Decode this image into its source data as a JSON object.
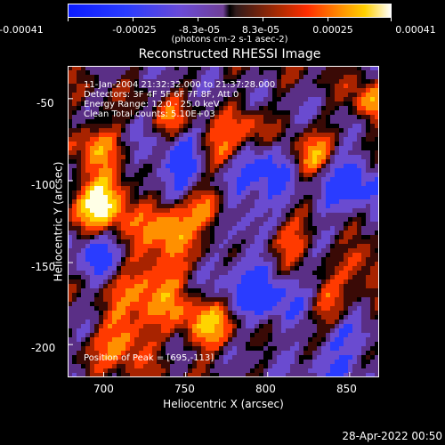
{
  "colorbar": {
    "ticks": [
      "-0.00041",
      "-0.00025",
      "-8.3e-05",
      "8.3e-05",
      "0.00025",
      "0.00041"
    ],
    "unit": "(photons cm-2 s-1 asec-2)"
  },
  "chart_data": {
    "type": "heatmap",
    "title": "Reconstructed RHESSI Image",
    "xlabel": "Heliocentric X (arcsec)",
    "ylabel": "Heliocentric Y (arcsec)",
    "xlim": [
      678,
      868
    ],
    "ylim": [
      -220,
      -30
    ],
    "x_ticks": [
      "700",
      "750",
      "800",
      "850"
    ],
    "y_ticks": [
      "-50",
      "-100",
      "-150",
      "-200"
    ],
    "annotations": [
      "11-Jan-2004 21:32:32.000 to 21:37:28.000",
      "Detectors: 3F 4F 5F 6F 7F 8F, Att 0",
      "Energy Range: 12.0 - 25.0 keV",
      "Clean    Total counts: 5.10E+03"
    ],
    "peak_text": "Position of Peak = [695,-113]"
  },
  "timestamp": "28-Apr-2022 00:50"
}
